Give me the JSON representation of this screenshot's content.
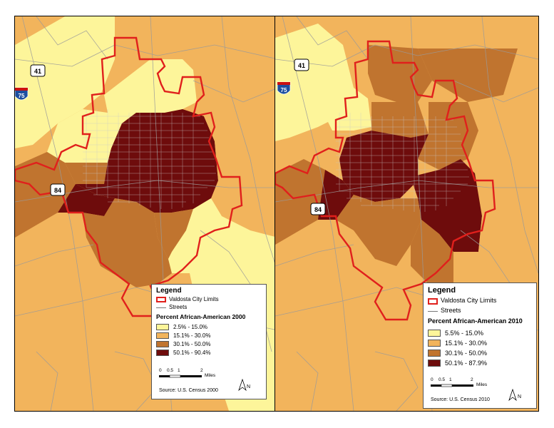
{
  "colors": {
    "class1": "#fdf59a",
    "class2": "#f2b45c",
    "class3": "#c0742f",
    "class4": "#6e0c0c",
    "city_limits": "#e0201c",
    "streets": "#9a9a9a"
  },
  "highways": {
    "us41": "41",
    "i75": "75",
    "us84": "84"
  },
  "map_2000": {
    "legend": {
      "title": "Legend",
      "city_limits_label": "Valdosta City Limits",
      "streets_label": "Streets",
      "subtitle": "Percent African-American 2000",
      "classes": [
        {
          "label": "2.5% - 15.0%",
          "color": "#fdf59a"
        },
        {
          "label": "15.1% - 30.0%",
          "color": "#f2b45c"
        },
        {
          "label": "30.1% - 50.0%",
          "color": "#c0742f"
        },
        {
          "label": "50.1% - 90.4%",
          "color": "#6e0c0c"
        }
      ],
      "scale_ticks": [
        "0",
        "0.5",
        "1",
        "2"
      ],
      "scale_unit": "Miles",
      "north": "N",
      "source": "Source: U.S. Census 2000"
    }
  },
  "map_2010": {
    "legend": {
      "title": "Legend",
      "city_limits_label": "Valdosta City Limits",
      "streets_label": "Streets",
      "subtitle": "Percent African-American 2010",
      "classes": [
        {
          "label": "5.5% - 15.0%",
          "color": "#fdf59a"
        },
        {
          "label": "15.1% - 30.0%",
          "color": "#f2b45c"
        },
        {
          "label": "30.1% - 50.0%",
          "color": "#c0742f"
        },
        {
          "label": "50.1% - 87.9%",
          "color": "#6e0c0c"
        }
      ],
      "scale_ticks": [
        "0",
        "0.5",
        "1",
        "2"
      ],
      "scale_unit": "Miles",
      "north": "N",
      "source": "Source: U.S. Census 2010"
    }
  }
}
